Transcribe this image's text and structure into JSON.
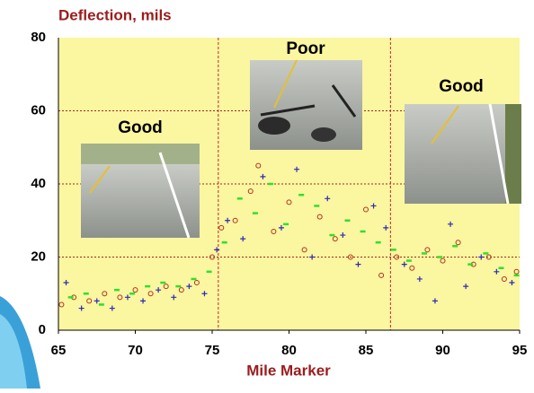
{
  "chart_data": {
    "type": "scatter",
    "title": "Deflection, mils",
    "x_label": "Mile Marker",
    "annotations": [
      "Good",
      "Poor",
      "Good"
    ],
    "xlim": [
      65,
      95
    ],
    "ylim": [
      0,
      80
    ],
    "xticks": [
      65,
      70,
      75,
      80,
      85,
      90,
      95
    ],
    "yticks": [
      0,
      20,
      40,
      60,
      80
    ],
    "grid": true,
    "section_boundaries": [
      75.4,
      86.6
    ],
    "series": [
      {
        "color": "#b0301e",
        "marker": "circle",
        "x": [
          65.2,
          66,
          67,
          68,
          69,
          70,
          71,
          72,
          73,
          74,
          75,
          75.6,
          76.5,
          77.5,
          78,
          79,
          80,
          81,
          82,
          83,
          84,
          85,
          86,
          87,
          88,
          89,
          90,
          91,
          92,
          93,
          94,
          94.8
        ],
        "values": [
          7,
          9,
          8,
          10,
          9,
          11,
          10,
          12,
          11,
          13,
          20,
          28,
          30,
          38,
          45,
          27,
          35,
          22,
          31,
          25,
          20,
          33,
          15,
          20,
          17,
          22,
          19,
          24,
          18,
          20,
          14,
          16
        ]
      },
      {
        "color": "#2a2ab8",
        "marker": "plus",
        "x": [
          65.5,
          66.5,
          67.5,
          68.5,
          69.5,
          70.5,
          71.5,
          72.5,
          73.5,
          74.5,
          75.3,
          76,
          77,
          78.3,
          79.5,
          80.5,
          81.5,
          82.5,
          83.5,
          84.5,
          85.5,
          86.3,
          87.5,
          88.5,
          89.5,
          90.5,
          91.5,
          92.5,
          93.5,
          94.5
        ],
        "values": [
          13,
          6,
          8,
          6,
          9,
          8,
          11,
          9,
          12,
          10,
          22,
          30,
          25,
          42,
          28,
          44,
          20,
          36,
          26,
          18,
          34,
          28,
          18,
          14,
          8,
          29,
          12,
          20,
          16,
          13
        ]
      },
      {
        "color": "#2ee02e",
        "marker": "dash",
        "x": [
          65.8,
          66.8,
          67.8,
          68.8,
          69.8,
          70.8,
          71.8,
          72.8,
          73.8,
          74.8,
          75.8,
          76.8,
          77.8,
          78.8,
          79.8,
          80.8,
          81.8,
          82.8,
          83.8,
          84.8,
          85.8,
          86.8,
          87.8,
          88.8,
          89.8,
          90.8,
          91.8,
          92.8,
          93.8,
          94.8
        ],
        "values": [
          9,
          10,
          7,
          11,
          10,
          12,
          13,
          12,
          14,
          16,
          24,
          36,
          32,
          40,
          29,
          37,
          34,
          26,
          30,
          27,
          24,
          22,
          19,
          21,
          20,
          23,
          18,
          21,
          17,
          15
        ]
      }
    ]
  }
}
